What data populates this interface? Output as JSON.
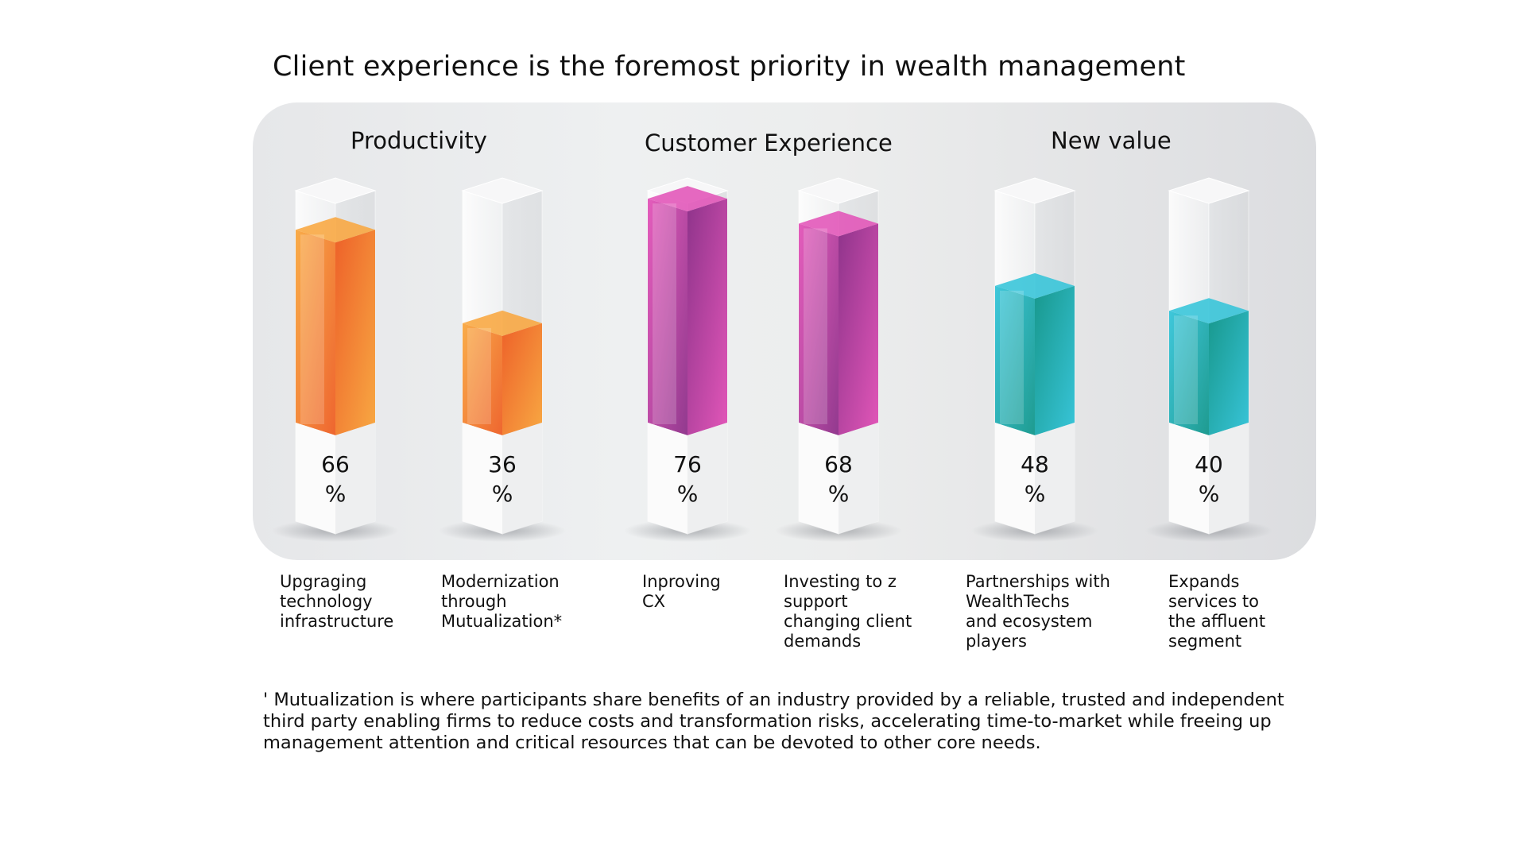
{
  "title": "Client experience is the foremost priority in wealth management",
  "groups": [
    "Productivity",
    "Customer Experience",
    "New value"
  ],
  "colors": {
    "orange_light": "#f9a53a",
    "orange_dark": "#ee5a1f",
    "magenta_light": "#e24fb6",
    "magenta_dark": "#8a2a86",
    "teal_light": "#2fc3d8",
    "teal_dark": "#0d9488"
  },
  "chart_data": {
    "type": "bar",
    "title": "Client experience is the foremost priority in wealth management",
    "unit": "%",
    "ylim": [
      0,
      100
    ],
    "categories": [
      "Upgraging\ntechnology\ninfrastructure",
      "Modernization\nthrough\nMutualization*",
      "Inproving\nCX",
      "Investing to z\nsupport\nchanging client\ndemands",
      "Partnerships with\nWealthTechs\nand ecosystem\nplayers",
      "Expands\nservices to\nthe affluent\nsegment"
    ],
    "groups": [
      "Productivity",
      "Productivity",
      "Customer Experience",
      "Customer Experience",
      "New value",
      "New value"
    ],
    "values": [
      66,
      36,
      76,
      68,
      48,
      40
    ],
    "value_labels": [
      "66",
      "36",
      "76",
      "68",
      "48",
      "40"
    ],
    "percent_sign": "%"
  },
  "footnote": "' Mutualization is where participants share benefits of an industry provided by a reliable, trusted and independent third party enabling firms to reduce costs and transformation risks, accelerating time-to-market while freeing up management attention and critical resources that can be devoted to other core needs."
}
